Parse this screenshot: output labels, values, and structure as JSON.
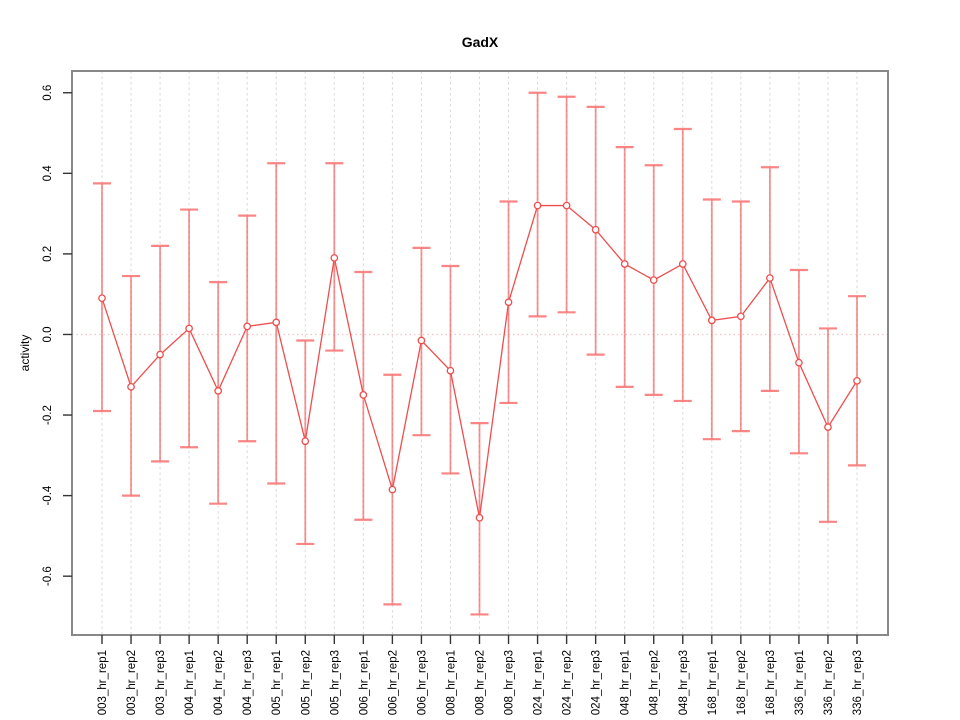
{
  "chart_data": {
    "type": "line",
    "title": "GadX",
    "xlabel": "",
    "ylabel": "activity",
    "categories": [
      "003_hr_rep1",
      "003_hr_rep2",
      "003_hr_rep3",
      "004_hr_rep1",
      "004_hr_rep2",
      "004_hr_rep3",
      "005_hr_rep1",
      "005_hr_rep2",
      "005_hr_rep3",
      "006_hr_rep1",
      "006_hr_rep2",
      "006_hr_rep3",
      "008_hr_rep1",
      "008_hr_rep2",
      "008_hr_rep3",
      "024_hr_rep1",
      "024_hr_rep2",
      "024_hr_rep3",
      "048_hr_rep1",
      "048_hr_rep2",
      "048_hr_rep3",
      "168_hr_rep1",
      "168_hr_rep2",
      "168_hr_rep3",
      "336_hr_rep1",
      "336_hr_rep2",
      "336_hr_rep3"
    ],
    "series": [
      {
        "name": "activity",
        "values": [
          0.09,
          -0.13,
          -0.05,
          0.015,
          -0.14,
          0.02,
          0.03,
          -0.265,
          0.19,
          -0.15,
          -0.385,
          -0.015,
          -0.09,
          -0.455,
          0.08,
          0.32,
          0.32,
          0.26,
          0.175,
          0.135,
          0.175,
          0.035,
          0.045,
          0.14,
          -0.07,
          -0.23,
          -0.115
        ],
        "lower": [
          -0.19,
          -0.4,
          -0.315,
          -0.28,
          -0.42,
          -0.265,
          -0.37,
          -0.52,
          -0.04,
          -0.46,
          -0.67,
          -0.25,
          -0.345,
          -0.695,
          -0.17,
          0.045,
          0.055,
          -0.05,
          -0.13,
          -0.15,
          -0.165,
          -0.26,
          -0.24,
          -0.14,
          -0.295,
          -0.465,
          -0.325
        ],
        "upper": [
          0.375,
          0.145,
          0.22,
          0.31,
          0.13,
          0.295,
          0.425,
          -0.015,
          0.425,
          0.155,
          -0.1,
          0.215,
          0.17,
          -0.22,
          0.33,
          0.6,
          0.59,
          0.565,
          0.465,
          0.42,
          0.51,
          0.335,
          0.33,
          0.415,
          0.16,
          0.015,
          0.095
        ]
      }
    ],
    "error_bars": true,
    "marker": "open-circle",
    "yticks": [
      -0.6,
      -0.4,
      -0.2,
      0,
      0.2,
      0.4,
      0.6
    ],
    "ytick_labels": [
      "-0.6",
      "-0.4",
      "-0.2",
      "0.0",
      "0.2",
      "0.4",
      "0.6"
    ],
    "ylim": [
      -0.746,
      0.654
    ],
    "grid": "vertical-dashed",
    "zero_line": true,
    "legend": "none",
    "colors": {
      "line": "#ee4d4d",
      "marker": "#ee4d4d",
      "error_bar": "rgba(242,80,80,0.62)",
      "error_cap": "rgba(250,120,120,0.9)",
      "grid": "#d9d9d9",
      "zero_line": "#f6c4c4",
      "box": "#888888",
      "tick": "#333333",
      "text": "#000000"
    }
  }
}
